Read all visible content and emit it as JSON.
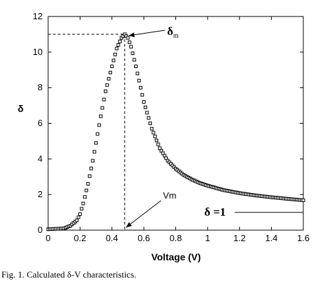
{
  "chart_data": {
    "type": "scatter",
    "title": "",
    "xlabel": "Voltage (V)",
    "ylabel": "δ",
    "xlim": [
      0,
      1.6
    ],
    "ylim": [
      0,
      12
    ],
    "xticks": [
      0,
      0.2,
      0.4,
      0.6,
      0.8,
      1,
      1.2,
      1.4,
      1.6
    ],
    "xtick_labels": [
      "0",
      "0.2",
      "0.4",
      "0.6",
      "0.8",
      "1",
      "1.2",
      "1.4",
      "1.6"
    ],
    "yticks": [
      0,
      2,
      4,
      6,
      8,
      10,
      12
    ],
    "ytick_labels": [
      "0",
      "2",
      "4",
      "6",
      "8",
      "10",
      "12"
    ],
    "grid": false,
    "marker": "square-open",
    "curve_points": [
      [
        0,
        0.05
      ],
      [
        0.1,
        0.1
      ],
      [
        0.14,
        0.25
      ],
      [
        0.18,
        0.55
      ],
      [
        0.2,
        0.9
      ],
      [
        0.22,
        1.5
      ],
      [
        0.25,
        2.6
      ],
      [
        0.28,
        3.9
      ],
      [
        0.3,
        4.9
      ],
      [
        0.33,
        6.4
      ],
      [
        0.36,
        7.8
      ],
      [
        0.4,
        9.2
      ],
      [
        0.43,
        10.2
      ],
      [
        0.46,
        10.8
      ],
      [
        0.48,
        11.0
      ],
      [
        0.5,
        10.8
      ],
      [
        0.52,
        10.3
      ],
      [
        0.55,
        9.2
      ],
      [
        0.58,
        8.0
      ],
      [
        0.6,
        7.2
      ],
      [
        0.65,
        5.7
      ],
      [
        0.7,
        4.6
      ],
      [
        0.75,
        3.9
      ],
      [
        0.8,
        3.45
      ],
      [
        0.85,
        3.1
      ],
      [
        0.9,
        2.85
      ],
      [
        0.95,
        2.65
      ],
      [
        1.0,
        2.5
      ],
      [
        1.1,
        2.25
      ],
      [
        1.2,
        2.08
      ],
      [
        1.3,
        1.95
      ],
      [
        1.4,
        1.85
      ],
      [
        1.5,
        1.76
      ],
      [
        1.6,
        1.68
      ]
    ],
    "peak": {
      "x": 0.48,
      "y": 11.0
    },
    "reference_line": {
      "y": 1.0,
      "x_from": 1.17,
      "x_to": 1.6
    },
    "annotations": {
      "delta_m": {
        "base": "δ",
        "sub": "m"
      },
      "vm": "Vm",
      "delta_eq": "δ =1"
    }
  },
  "caption": "Fig. 1.  Calculated δ-V characteristics."
}
